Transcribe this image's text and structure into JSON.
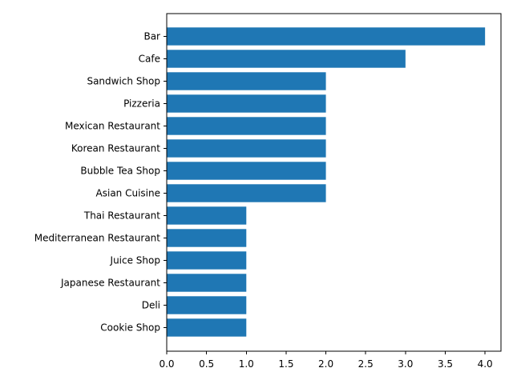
{
  "chart_data": {
    "type": "bar",
    "orientation": "horizontal",
    "categories": [
      "Bar",
      "Cafe",
      "Sandwich Shop",
      "Pizzeria",
      "Mexican Restaurant",
      "Korean Restaurant",
      "Bubble Tea Shop",
      "Asian Cuisine ",
      "Thai Restaurant",
      "Mediterranean Restaurant",
      "Juice Shop",
      "Japanese Restaurant",
      "Deli",
      "Cookie Shop"
    ],
    "values": [
      4,
      3,
      2,
      2,
      2,
      2,
      2,
      2,
      1,
      1,
      1,
      1,
      1,
      1
    ],
    "title": "",
    "xlabel": "",
    "ylabel": "",
    "xlim": [
      0,
      4.2
    ],
    "xticks": [
      "0.0",
      "0.5",
      "1.0",
      "1.5",
      "2.0",
      "2.5",
      "3.0",
      "3.5",
      "4.0"
    ],
    "grid": false,
    "bar_color": "#1f77b4"
  }
}
